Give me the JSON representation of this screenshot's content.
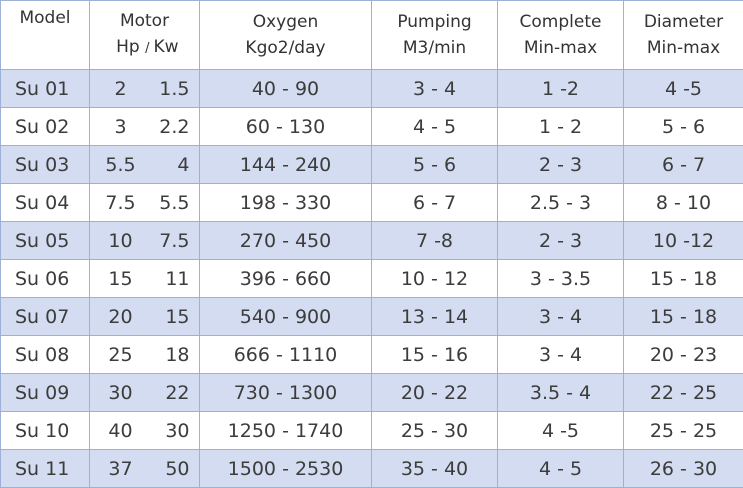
{
  "headers": {
    "model": "Model",
    "motor_top": "Motor",
    "motor_hp": "Hp",
    "motor_sep": "/",
    "motor_kw": "Kw",
    "oxygen_top": "Oxygen",
    "oxygen_unit": "Kgo2/day",
    "pumping_top": "Pumping",
    "pumping_unit": "M3/min",
    "complete_top": "Complete",
    "complete_unit": "Min-max",
    "diameter_top": "Diameter",
    "diameter_unit": "Min-max"
  },
  "rows": [
    {
      "model": "Su 01",
      "hp": "2",
      "kw": "1.5",
      "oxygen": "40 - 90",
      "pumping": "3 - 4",
      "complete": "1 -2",
      "diameter": "4 -5"
    },
    {
      "model": "Su 02",
      "hp": "3",
      "kw": "2.2",
      "oxygen": "60 - 130",
      "pumping": "4 - 5",
      "complete": "1 - 2",
      "diameter": "5 - 6"
    },
    {
      "model": "Su 03",
      "hp": "5.5",
      "kw": "4",
      "oxygen": "144 - 240",
      "pumping": "5 - 6",
      "complete": "2 - 3",
      "diameter": "6 - 7"
    },
    {
      "model": "Su 04",
      "hp": "7.5",
      "kw": "5.5",
      "oxygen": "198 - 330",
      "pumping": "6 - 7",
      "complete": "2.5 - 3",
      "diameter": "8 - 10"
    },
    {
      "model": "Su 05",
      "hp": "10",
      "kw": "7.5",
      "oxygen": "270 - 450",
      "pumping": "7 -8",
      "complete": "2 - 3",
      "diameter": "10 -12"
    },
    {
      "model": "Su 06",
      "hp": "15",
      "kw": "11",
      "oxygen": "396 - 660",
      "pumping": "10 - 12",
      "complete": "3 - 3.5",
      "diameter": "15 - 18"
    },
    {
      "model": "Su 07",
      "hp": "20",
      "kw": "15",
      "oxygen": "540 - 900",
      "pumping": "13 - 14",
      "complete": "3 - 4",
      "diameter": "15 - 18"
    },
    {
      "model": "Su 08",
      "hp": "25",
      "kw": "18",
      "oxygen": "666 - 1110",
      "pumping": "15 - 16",
      "complete": "3 - 4",
      "diameter": "20 - 23"
    },
    {
      "model": "Su 09",
      "hp": "30",
      "kw": "22",
      "oxygen": "730 - 1300",
      "pumping": "20 - 22",
      "complete": "3.5 - 4",
      "diameter": "22 - 25"
    },
    {
      "model": "Su 10",
      "hp": "40",
      "kw": "30",
      "oxygen": "1250 - 1740",
      "pumping": "25 - 30",
      "complete": "4 -5",
      "diameter": "25 - 25"
    },
    {
      "model": "Su 11",
      "hp": "37",
      "kw": "50",
      "oxygen": "1500 - 2530",
      "pumping": "35 - 40",
      "complete": "4 - 5",
      "diameter": "26 - 30"
    }
  ],
  "colors": {
    "band": "#d3dcf0",
    "border": "#9db1d8",
    "text": "#3c3c3c"
  }
}
